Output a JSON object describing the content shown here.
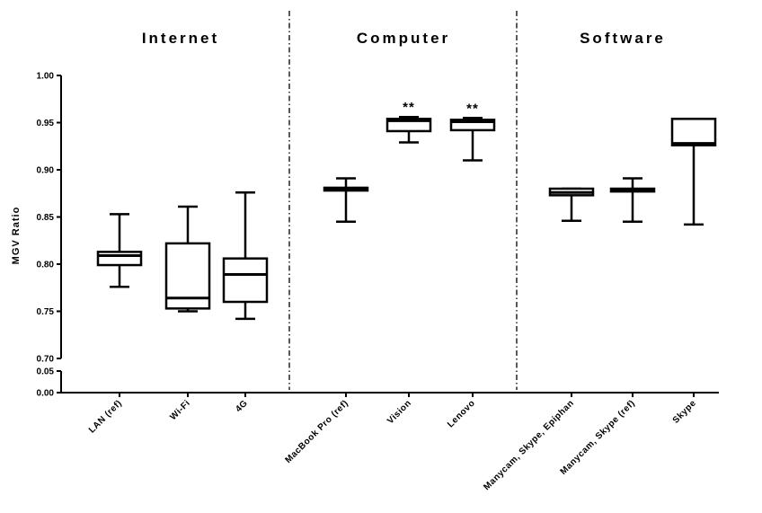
{
  "chart_data": {
    "type": "boxplot",
    "ylabel": "MGV Ratio",
    "ylim": [
      0.7,
      1.0
    ],
    "yticks_main": [
      "0.70",
      "0.75",
      "0.80",
      "0.85",
      "0.90",
      "0.95",
      "1.00"
    ],
    "yticks_lower": [
      "0.00",
      "0.05"
    ],
    "groups": [
      {
        "title": "Internet",
        "categories": [
          "LAN (ref)",
          "Wi-Fi",
          "4G"
        ]
      },
      {
        "title": "Computer",
        "categories": [
          "MacBook Pro (ref)",
          "Vision",
          "Lenovo"
        ]
      },
      {
        "title": "Software",
        "categories": [
          "Manycam, Skype, Epiphan",
          "Manycam, Skype (ref)",
          "Skype"
        ]
      }
    ],
    "boxes": [
      {
        "category": "LAN (ref)",
        "min": 0.776,
        "q1": 0.799,
        "median": 0.809,
        "q3": 0.813,
        "max": 0.853,
        "sig": ""
      },
      {
        "category": "Wi-Fi",
        "min": 0.75,
        "q1": 0.753,
        "median": 0.764,
        "q3": 0.822,
        "max": 0.861,
        "sig": ""
      },
      {
        "category": "4G",
        "min": 0.742,
        "q1": 0.76,
        "median": 0.789,
        "q3": 0.806,
        "max": 0.876,
        "sig": ""
      },
      {
        "category": "MacBook Pro (ref)",
        "min": 0.845,
        "q1": 0.878,
        "median": 0.879,
        "q3": 0.881,
        "max": 0.891,
        "sig": ""
      },
      {
        "category": "Vision",
        "min": 0.929,
        "q1": 0.941,
        "median": 0.952,
        "q3": 0.954,
        "max": 0.956,
        "sig": "**"
      },
      {
        "category": "Lenovo",
        "min": 0.91,
        "q1": 0.942,
        "median": 0.951,
        "q3": 0.953,
        "max": 0.955,
        "sig": "**"
      },
      {
        "category": "Manycam, Skype, Epiphan",
        "min": 0.846,
        "q1": 0.873,
        "median": 0.876,
        "q3": 0.88,
        "max": 0.88,
        "sig": ""
      },
      {
        "category": "Manycam, Skype (ref)",
        "min": 0.845,
        "q1": 0.877,
        "median": 0.879,
        "q3": 0.88,
        "max": 0.891,
        "sig": ""
      },
      {
        "category": "Skype",
        "min": 0.842,
        "q1": 0.926,
        "median": 0.928,
        "q3": 0.954,
        "max": 0.954,
        "sig": ""
      }
    ]
  }
}
